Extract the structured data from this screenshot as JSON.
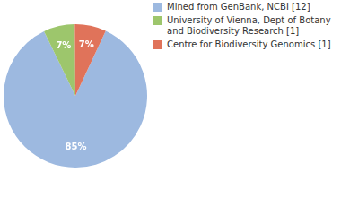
{
  "chart_data": {
    "type": "pie",
    "categories": [
      "Mined from GenBank, NCBI [12]",
      "University of Vienna, Dept of Botany and Biodiversity Research [1]",
      "Centre for Biodiversity Genomics [1]"
    ],
    "values": [
      85,
      7,
      7
    ],
    "value_labels": [
      "85%",
      "7%",
      "7%"
    ],
    "colors": [
      "#9db9e0",
      "#9dc66c",
      "#e0735a"
    ],
    "data_labels": true,
    "legend": "top-right"
  }
}
